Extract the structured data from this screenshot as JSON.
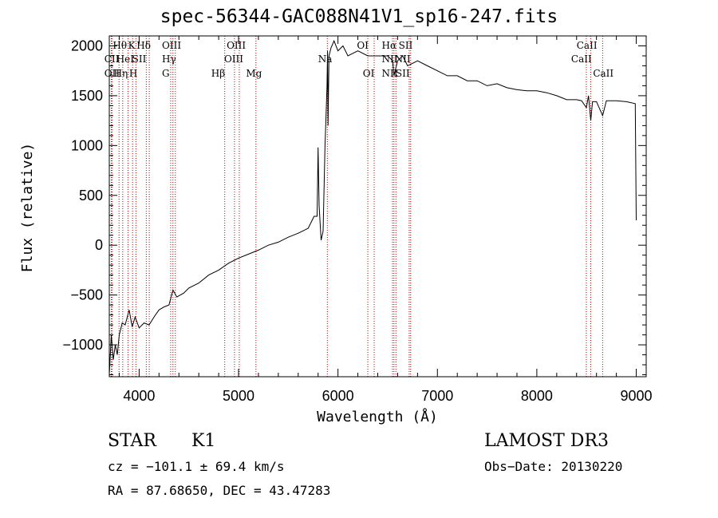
{
  "chart_data": {
    "type": "line",
    "title": "spec-56344-GAC088N41V1_sp16-247.fits",
    "xlabel": "Wavelength (Å)",
    "ylabel": "Flux (relative)",
    "xlim": [
      3700,
      9100
    ],
    "ylim": [
      -1320,
      2100
    ],
    "x_ticks": [
      4000,
      5000,
      6000,
      7000,
      8000,
      9000
    ],
    "x_tick_labels": [
      "4000",
      "5000",
      "6000",
      "7000",
      "8000",
      "9000"
    ],
    "y_ticks": [
      -1000,
      -500,
      0,
      500,
      1000,
      1500,
      2000
    ],
    "y_tick_labels": [
      "−1000",
      "−500",
      "0",
      "500",
      "1000",
      "1500",
      "2000"
    ],
    "series": [
      {
        "name": "spectrum",
        "color": "#000000",
        "x": [
          3700,
          3720,
          3740,
          3760,
          3780,
          3800,
          3830,
          3860,
          3900,
          3930,
          3960,
          4000,
          4050,
          4100,
          4150,
          4200,
          4250,
          4300,
          4340,
          4380,
          4450,
          4500,
          4600,
          4700,
          4800,
          4900,
          5000,
          5100,
          5200,
          5300,
          5400,
          5500,
          5600,
          5700,
          5760,
          5790,
          5800,
          5810,
          5830,
          5850,
          5870,
          5880,
          5890,
          5895,
          5900,
          5910,
          5930,
          5960,
          6000,
          6050,
          6100,
          6200,
          6300,
          6400,
          6500,
          6550,
          6563,
          6600,
          6650,
          6700,
          6800,
          6900,
          7000,
          7100,
          7200,
          7300,
          7400,
          7500,
          7600,
          7700,
          7800,
          7900,
          8000,
          8100,
          8200,
          8300,
          8400,
          8450,
          8498,
          8520,
          8542,
          8560,
          8600,
          8662,
          8700,
          8800,
          8900,
          8950,
          8990,
          9000
        ],
        "y": [
          -1300,
          -900,
          -1150,
          -1000,
          -1100,
          -900,
          -780,
          -800,
          -650,
          -820,
          -720,
          -830,
          -780,
          -800,
          -720,
          -650,
          -620,
          -600,
          -450,
          -520,
          -480,
          -430,
          -380,
          -300,
          -250,
          -180,
          -130,
          -90,
          -50,
          0,
          30,
          80,
          120,
          170,
          290,
          290,
          980,
          400,
          50,
          140,
          1000,
          1300,
          1600,
          1950,
          1200,
          1900,
          1980,
          2050,
          1950,
          2000,
          1900,
          1950,
          1900,
          1900,
          1900,
          1850,
          1700,
          1850,
          1900,
          1800,
          1850,
          1800,
          1750,
          1700,
          1700,
          1650,
          1650,
          1600,
          1620,
          1580,
          1560,
          1550,
          1550,
          1530,
          1500,
          1460,
          1460,
          1450,
          1380,
          1500,
          1250,
          1440,
          1440,
          1300,
          1450,
          1450,
          1440,
          1430,
          1420,
          250
        ]
      }
    ],
    "line_markers": [
      {
        "name": "CII",
        "x": 3720
      },
      {
        "name": "OII",
        "x": 3727
      },
      {
        "name": "Hθ",
        "x": 3798
      },
      {
        "name": "Hη",
        "x": 3835
      },
      {
        "name": "HeI",
        "x": 3889
      },
      {
        "name": "K",
        "x": 3934
      },
      {
        "name": "H",
        "x": 3968
      },
      {
        "name": "SII",
        "x": 4072
      },
      {
        "name": "Hδ",
        "x": 4102
      },
      {
        "name": "OIII",
        "x": 4317
      },
      {
        "name": "Hγ",
        "x": 4340
      },
      {
        "name": "G",
        "x": 4364
      },
      {
        "name": "Hβ",
        "x": 4861
      },
      {
        "name": "OIII",
        "x": 4959
      },
      {
        "name": "OIII",
        "x": 5007
      },
      {
        "name": "Mg",
        "x": 5175
      },
      {
        "name": "Na",
        "x": 5893
      },
      {
        "name": "OI",
        "x": 6300
      },
      {
        "name": "OI",
        "x": 6364
      },
      {
        "name": "NII",
        "x": 6548
      },
      {
        "name": "Hα",
        "x": 6563
      },
      {
        "name": "NII",
        "x": 6583
      },
      {
        "name": "SII",
        "x": 6716
      },
      {
        "name": "SII",
        "x": 6731
      },
      {
        "name": "CaII",
        "x": 8498
      },
      {
        "name": "CaII",
        "x": 8542
      },
      {
        "name": "CaII",
        "x": 8662
      }
    ],
    "line_labels": [
      {
        "text": "Hθ",
        "x": 3735,
        "row": 0
      },
      {
        "text": "K",
        "x": 3890,
        "row": 0
      },
      {
        "text": "Hδ",
        "x": 3975,
        "row": 0
      },
      {
        "text": "OIII",
        "x": 4230,
        "row": 0
      },
      {
        "text": "OIII",
        "x": 4880,
        "row": 0
      },
      {
        "text": "OI",
        "x": 6190,
        "row": 0
      },
      {
        "text": "Hα",
        "x": 6440,
        "row": 0
      },
      {
        "text": "SII",
        "x": 6610,
        "row": 0
      },
      {
        "text": "CaII",
        "x": 8400,
        "row": 0
      },
      {
        "text": "CII",
        "x": 3650,
        "row": 1
      },
      {
        "text": "HeI",
        "x": 3770,
        "row": 1
      },
      {
        "text": "SII",
        "x": 3930,
        "row": 1
      },
      {
        "text": "Hγ",
        "x": 4230,
        "row": 1
      },
      {
        "text": "OIII",
        "x": 4855,
        "row": 1
      },
      {
        "text": "Na",
        "x": 5800,
        "row": 1
      },
      {
        "text": "NII",
        "x": 6440,
        "row": 1
      },
      {
        "text": "NII",
        "x": 6570,
        "row": 1
      },
      {
        "text": "CaII",
        "x": 8345,
        "row": 1
      },
      {
        "text": "OII",
        "x": 3650,
        "row": 2
      },
      {
        "text": "Hη",
        "x": 3745,
        "row": 2
      },
      {
        "text": "H",
        "x": 3900,
        "row": 2
      },
      {
        "text": "G",
        "x": 4230,
        "row": 2
      },
      {
        "text": "Hβ",
        "x": 4725,
        "row": 2
      },
      {
        "text": "Mg",
        "x": 5075,
        "row": 2
      },
      {
        "text": "OI",
        "x": 6250,
        "row": 2
      },
      {
        "text": "NII",
        "x": 6440,
        "row": 2
      },
      {
        "text": "SII",
        "x": 6580,
        "row": 2
      },
      {
        "text": "CaII",
        "x": 8565,
        "row": 2
      }
    ]
  },
  "info": {
    "object_class": "STAR",
    "subclass": "K1",
    "survey": "LAMOST DR3",
    "redshift": "cz = −101.1 ± 69.4 km/s",
    "obs_date": "Obs−Date: 20130220",
    "coords": "RA =  87.68650, DEC =  43.47283"
  },
  "colors": {
    "spectrum": "#000000",
    "marker": "#c00000",
    "axis": "#000000"
  }
}
